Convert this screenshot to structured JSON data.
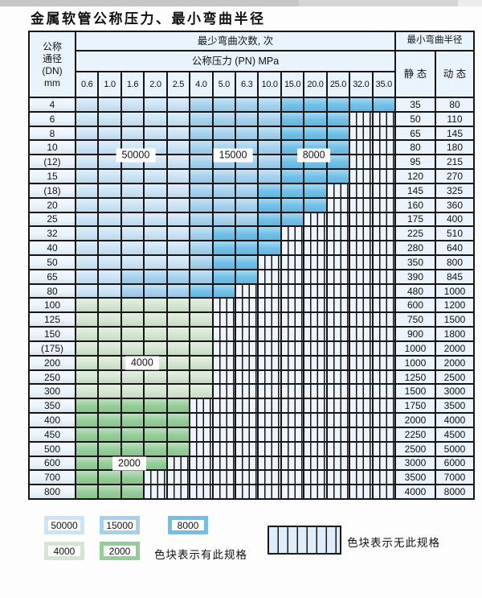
{
  "page": {
    "title": "金属软管公称压力、最小弯曲半径"
  },
  "table": {
    "header": {
      "dn_lines": [
        "公称",
        "通径",
        "(DN)",
        "mm"
      ],
      "bend_cycles_label": "最少弯曲次数, 次",
      "pressure_label": "公称压力 (PN) MPa",
      "min_radius_label": "最小弯曲半径",
      "static_label": "静 态",
      "dynamic_label": "动 态",
      "pressure_columns": [
        "0.6",
        "1.0",
        "1.6",
        "2.0",
        "2.5",
        "4.0",
        "5.0",
        "6.3",
        "10.0",
        "15.0",
        "20.0",
        "25.0",
        "32.0",
        "35.0"
      ]
    },
    "rows": [
      {
        "dn": "4",
        "spec": "LLLLLMMMMDDDDD",
        "static": "35",
        "dynamic": "80"
      },
      {
        "dn": "6",
        "spec": "LLLLLMMMMDDDHH",
        "static": "50",
        "dynamic": "110"
      },
      {
        "dn": "8",
        "spec": "LLLLLMMMMDDDHH",
        "static": "65",
        "dynamic": "145"
      },
      {
        "dn": "10",
        "spec": "LLLLLMMMMDDDHH",
        "static": "80",
        "dynamic": "180"
      },
      {
        "dn": "(12)",
        "spec": "LLLLLMMMMDDDHH",
        "static": "95",
        "dynamic": "215"
      },
      {
        "dn": "15",
        "spec": "LLLLLMMMMDDDHH",
        "static": "120",
        "dynamic": "270"
      },
      {
        "dn": "(18)",
        "spec": "LLLLLMMMDDDHHH",
        "static": "145",
        "dynamic": "325"
      },
      {
        "dn": "20",
        "spec": "LLLLLMMMDDDHHH",
        "static": "160",
        "dynamic": "360"
      },
      {
        "dn": "25",
        "spec": "LLLLLMMMDDHHHH",
        "static": "175",
        "dynamic": "400"
      },
      {
        "dn": "32",
        "spec": "LLLLLMDDDHHHHH",
        "static": "225",
        "dynamic": "510"
      },
      {
        "dn": "40",
        "spec": "LLLLLMDDDHHHHH",
        "static": "280",
        "dynamic": "640"
      },
      {
        "dn": "50",
        "spec": "LLLLLMDDHHHHHH",
        "static": "350",
        "dynamic": "800"
      },
      {
        "dn": "65",
        "spec": "LLMMMMDDHHHHHH",
        "static": "390",
        "dynamic": "845"
      },
      {
        "dn": "80",
        "spec": "LLMMMDDHHHHHHH",
        "static": "480",
        "dynamic": "1000"
      },
      {
        "dn": "100",
        "spec": "GGGGGGHHHHHHHH",
        "static": "600",
        "dynamic": "1200"
      },
      {
        "dn": "125",
        "spec": "GGGGGGHHHHHHHH",
        "static": "750",
        "dynamic": "1500"
      },
      {
        "dn": "150",
        "spec": "GGGGGGHHHHHHHH",
        "static": "900",
        "dynamic": "1800"
      },
      {
        "dn": "(175)",
        "spec": "GGGGGGHHHHHHHH",
        "static": "1000",
        "dynamic": "2000"
      },
      {
        "dn": "200",
        "spec": "GGGGGGHHHHHHHH",
        "static": "1000",
        "dynamic": "2000"
      },
      {
        "dn": "250",
        "spec": "GGGGGGHHHHHHHH",
        "static": "1250",
        "dynamic": "2500"
      },
      {
        "dn": "300",
        "spec": "GGGGGGHHHHHHHH",
        "static": "1500",
        "dynamic": "3000"
      },
      {
        "dn": "350",
        "spec": "EEEEEHHHHHHHHH",
        "static": "1750",
        "dynamic": "3500"
      },
      {
        "dn": "400",
        "spec": "EEEEEHHHHHHHHH",
        "static": "2000",
        "dynamic": "4000"
      },
      {
        "dn": "450",
        "spec": "EEEEEHHHHHHHHH",
        "static": "2250",
        "dynamic": "4500"
      },
      {
        "dn": "500",
        "spec": "EEEEEHHHHHHHHH",
        "static": "2500",
        "dynamic": "5000"
      },
      {
        "dn": "600",
        "spec": "EEEEHHHHHHHHHH",
        "static": "3000",
        "dynamic": "6000"
      },
      {
        "dn": "700",
        "spec": "EEEHHHHHHHHHHH",
        "static": "3500",
        "dynamic": "7000"
      },
      {
        "dn": "800",
        "spec": "EEEHHHHHHHHHHH",
        "static": "4000",
        "dynamic": "8000"
      }
    ],
    "cycle_labels": [
      {
        "text": "50000",
        "col": 2.6,
        "row": 4.0
      },
      {
        "text": "15000",
        "col": 6.86,
        "row": 4.0
      },
      {
        "text": "8000",
        "col": 10.4,
        "row": 4.0
      },
      {
        "text": "4000",
        "col": 2.88,
        "row": 18.5
      },
      {
        "text": "2000",
        "col": 2.32,
        "row": 25.5
      }
    ]
  },
  "legend": {
    "items": [
      {
        "label": "50000",
        "zone": "L"
      },
      {
        "label": "15000",
        "zone": "M"
      },
      {
        "label": "8000",
        "zone": "D"
      },
      {
        "label": "4000",
        "zone": "G"
      },
      {
        "label": "2000",
        "zone": "E"
      }
    ],
    "has_spec_text": "色块表示有此规格",
    "no_spec_text": "色块表示无此规格"
  },
  "colors": {
    "L": "#cbe4f6",
    "M": "#a4d2ee",
    "D": "#6fc0e8",
    "G": "#d3e7d0",
    "E": "#94cd97",
    "hatch_bg": "#edf4fb",
    "header_bg": "#e9f3fb",
    "grid": "#161616"
  }
}
